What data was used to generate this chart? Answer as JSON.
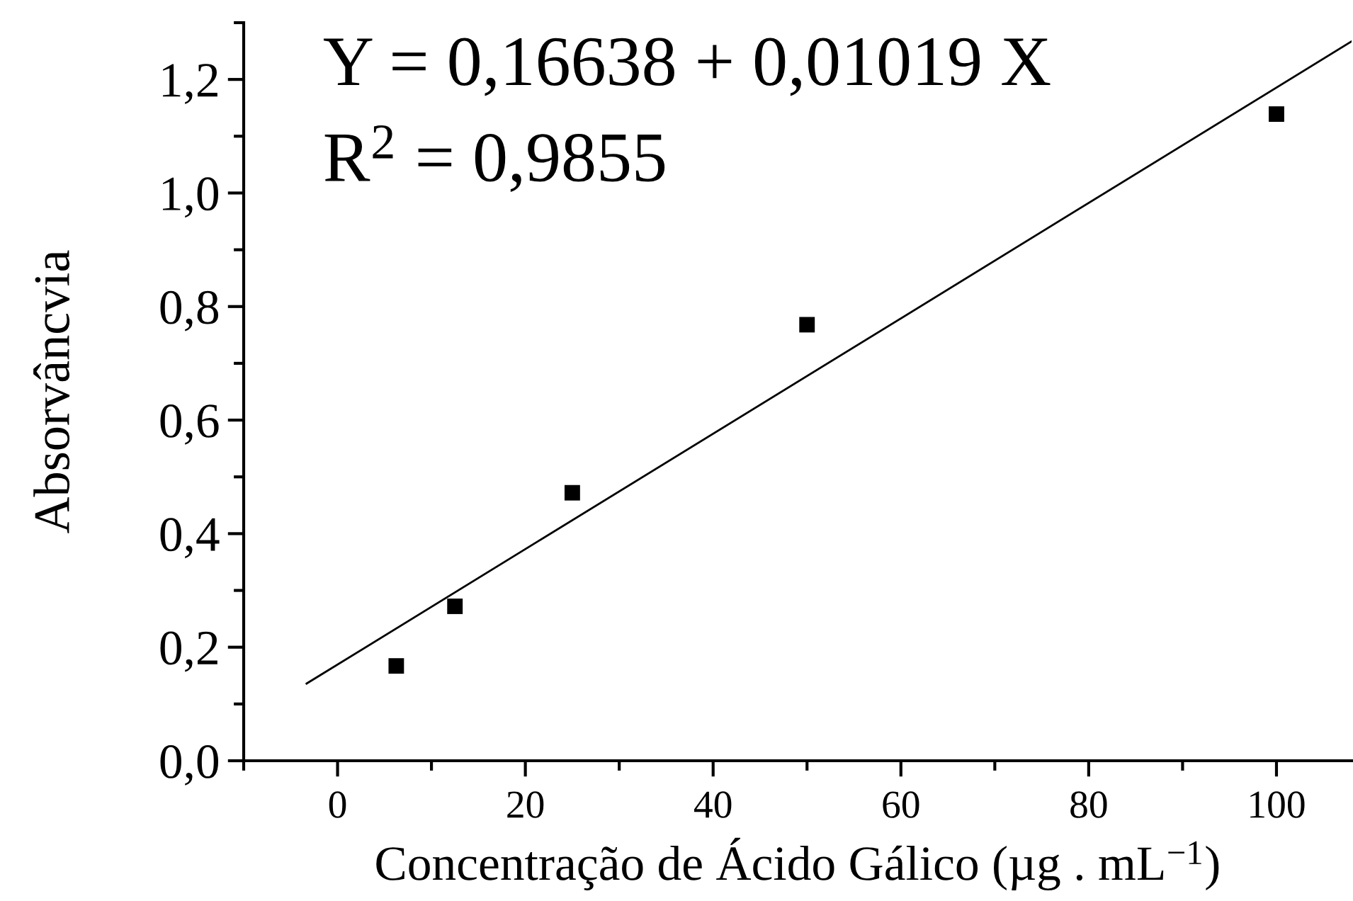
{
  "chart_data": {
    "type": "scatter",
    "xlabel": "Concentração de Ácido Gálico (µg . mL$^{−1}$)",
    "ylabel": "Absorvâncvia",
    "annotations": [
      "Y = 0,16638 + 0,01019 X",
      "R$^{2}$ = 0,9855"
    ],
    "xlim": [
      -10,
      108
    ],
    "ylim": [
      0,
      1.3
    ],
    "xticks": [
      {
        "value": -10,
        "label": null
      },
      0,
      {
        "value": 10,
        "label": null
      },
      20,
      {
        "value": 30,
        "label": null
      },
      40,
      {
        "value": 50,
        "label": null
      },
      60,
      {
        "value": 70,
        "label": null
      },
      80,
      {
        "value": 90,
        "label": null
      },
      100
    ],
    "yticks": [
      {
        "value": 0,
        "label": "0,0"
      },
      {
        "value": 0.1,
        "label": null
      },
      {
        "value": 0.2,
        "label": "0,2"
      },
      {
        "value": 0.3,
        "label": null
      },
      {
        "value": 0.4,
        "label": "0,4"
      },
      {
        "value": 0.5,
        "label": null
      },
      {
        "value": 0.6,
        "label": "0,6"
      },
      {
        "value": 0.7,
        "label": null
      },
      {
        "value": 0.8,
        "label": "0,8"
      },
      {
        "value": 0.9,
        "label": null
      },
      {
        "value": 1.0,
        "label": "1,0"
      },
      {
        "value": 1.1,
        "label": null
      },
      {
        "value": 1.2,
        "label": "1,2"
      },
      {
        "value": 1.3,
        "label": null
      }
    ],
    "grid": false,
    "series": [
      {
        "color": "#000000",
        "marker": "square",
        "x": [
          6.25,
          12.5,
          25,
          50,
          100
        ],
        "values": [
          0.167,
          0.272,
          0.472,
          0.768,
          1.139
        ]
      },
      {
        "type": "line",
        "color": "#000000",
        "marker": "none",
        "line_style": "solid",
        "x": [
          -3.3,
          108
        ],
        "values": [
          0.136,
          1.267
        ]
      }
    ]
  }
}
